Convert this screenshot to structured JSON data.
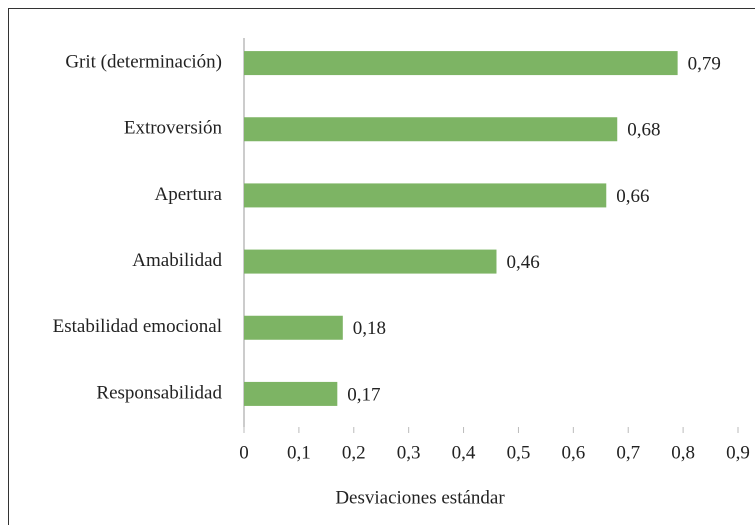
{
  "chart_data": {
    "type": "barh",
    "categories": [
      "Grit (determinación)",
      "Extroversión",
      "Apertura",
      "Amabilidad",
      "Estabilidad emocional",
      "Responsabilidad"
    ],
    "values": [
      0.79,
      0.68,
      0.66,
      0.46,
      0.18,
      0.17
    ],
    "value_labels": [
      "0,79",
      "0,68",
      "0,66",
      "0,46",
      "0,18",
      "0,17"
    ],
    "color": "#7db464",
    "xlabel": "Desviaciones estándar",
    "xlim": [
      0,
      0.9
    ],
    "xticks": [
      0,
      {
        "value": 0.1,
        "label": "0,1"
      },
      {
        "value": 0.2,
        "label": "0,2"
      },
      {
        "value": 0.3,
        "label": "0,3"
      },
      {
        "value": 0.4,
        "label": "0,4"
      },
      {
        "value": 0.5,
        "label": "0,5"
      },
      {
        "value": 0.6,
        "label": "0,6"
      },
      {
        "value": 0.7,
        "label": "0,7"
      },
      {
        "value": 0.8,
        "label": "0,8"
      },
      {
        "value": 0.9,
        "label": "0,9"
      }
    ],
    "grid": false
  }
}
